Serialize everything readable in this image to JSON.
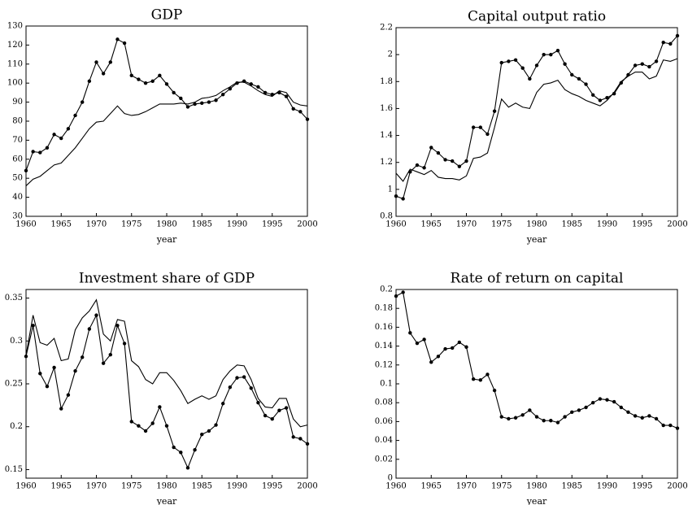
{
  "chart_data": [
    {
      "type": "line",
      "title": "GDP",
      "xlabel": "year",
      "x": [
        1960,
        1961,
        1962,
        1963,
        1964,
        1965,
        1966,
        1967,
        1968,
        1969,
        1970,
        1971,
        1972,
        1973,
        1974,
        1975,
        1976,
        1977,
        1978,
        1979,
        1980,
        1981,
        1982,
        1983,
        1984,
        1985,
        1986,
        1987,
        1988,
        1989,
        1990,
        1991,
        1992,
        1993,
        1994,
        1995,
        1996,
        1997,
        1998,
        1999,
        2000
      ],
      "xlim": [
        1960,
        2000
      ],
      "xticks": [
        1960,
        1965,
        1970,
        1975,
        1980,
        1985,
        1990,
        1995,
        2000
      ],
      "ylim": [
        30,
        130
      ],
      "yticks": [
        30,
        40,
        50,
        60,
        70,
        80,
        90,
        100,
        110,
        120,
        130
      ],
      "series": [
        {
          "color": "#000000",
          "marker": "o",
          "values": [
            54,
            64,
            63.5,
            66,
            73,
            71,
            76,
            83,
            90,
            101,
            111,
            105,
            111,
            123,
            121,
            104,
            102,
            100,
            101,
            104,
            99.5,
            95,
            92,
            87.5,
            89,
            89.5,
            90,
            91,
            94,
            97,
            100,
            101,
            99.5,
            98,
            95,
            94,
            95,
            93,
            86.5,
            85,
            81
          ]
        },
        {
          "color": "#000000",
          "values": [
            46,
            49.5,
            51,
            54,
            57,
            58,
            62,
            66,
            71,
            76,
            79.5,
            80,
            84,
            88,
            84,
            83,
            83.5,
            85,
            87,
            89,
            89,
            89,
            89.5,
            89,
            90,
            92,
            92.5,
            93.5,
            96,
            98,
            100.5,
            100.5,
            98.5,
            96,
            94,
            93,
            96,
            95,
            90,
            88.5,
            88
          ]
        }
      ]
    },
    {
      "type": "line",
      "title": "Capital output ratio",
      "xlabel": "year",
      "x": [
        1960,
        1961,
        1962,
        1963,
        1964,
        1965,
        1966,
        1967,
        1968,
        1969,
        1970,
        1971,
        1972,
        1973,
        1974,
        1975,
        1976,
        1977,
        1978,
        1979,
        1980,
        1981,
        1982,
        1983,
        1984,
        1985,
        1986,
        1987,
        1988,
        1989,
        1990,
        1991,
        1992,
        1993,
        1994,
        1995,
        1996,
        1997,
        1998,
        1999,
        2000
      ],
      "xlim": [
        1960,
        2000
      ],
      "xticks": [
        1960,
        1965,
        1970,
        1975,
        1980,
        1985,
        1990,
        1995,
        2000
      ],
      "ylim": [
        0.8,
        2.2
      ],
      "yticks": [
        0.8,
        1,
        1.2,
        1.4,
        1.6,
        1.8,
        2,
        2.2
      ],
      "series": [
        {
          "color": "#000000",
          "marker": "o",
          "values": [
            0.95,
            0.93,
            1.13,
            1.18,
            1.16,
            1.31,
            1.27,
            1.22,
            1.21,
            1.17,
            1.21,
            1.46,
            1.46,
            1.41,
            1.58,
            1.94,
            1.95,
            1.96,
            1.9,
            1.82,
            1.92,
            2,
            2,
            2.03,
            1.93,
            1.85,
            1.82,
            1.78,
            1.7,
            1.66,
            1.68,
            1.71,
            1.79,
            1.85,
            1.92,
            1.93,
            1.91,
            1.95,
            2.09,
            2.08,
            2.14
          ]
        },
        {
          "color": "#000000",
          "values": [
            1.12,
            1.06,
            1.15,
            1.13,
            1.11,
            1.14,
            1.09,
            1.08,
            1.08,
            1.07,
            1.1,
            1.23,
            1.24,
            1.27,
            1.46,
            1.67,
            1.61,
            1.64,
            1.61,
            1.6,
            1.72,
            1.78,
            1.79,
            1.81,
            1.74,
            1.71,
            1.69,
            1.66,
            1.64,
            1.62,
            1.66,
            1.72,
            1.8,
            1.84,
            1.87,
            1.87,
            1.82,
            1.84,
            1.96,
            1.95,
            1.97
          ]
        }
      ]
    },
    {
      "type": "line",
      "title": "Investment share of GDP",
      "xlabel": "year",
      "x": [
        1960,
        1961,
        1962,
        1963,
        1964,
        1965,
        1966,
        1967,
        1968,
        1969,
        1970,
        1971,
        1972,
        1973,
        1974,
        1975,
        1976,
        1977,
        1978,
        1979,
        1980,
        1981,
        1982,
        1983,
        1984,
        1985,
        1986,
        1987,
        1988,
        1989,
        1990,
        1991,
        1992,
        1993,
        1994,
        1995,
        1996,
        1997,
        1998,
        1999,
        2000
      ],
      "xlim": [
        1960,
        2000
      ],
      "xticks": [
        1960,
        1965,
        1970,
        1975,
        1980,
        1985,
        1990,
        1995,
        2000
      ],
      "ylim": [
        0.14,
        0.36
      ],
      "yticks": [
        0.15,
        0.2,
        0.25,
        0.3,
        0.35
      ],
      "series": [
        {
          "color": "#000000",
          "marker": "o",
          "values": [
            0.282,
            0.318,
            0.262,
            0.247,
            0.269,
            0.221,
            0.237,
            0.265,
            0.281,
            0.314,
            0.33,
            0.274,
            0.284,
            0.318,
            0.297,
            0.206,
            0.201,
            0.195,
            0.204,
            0.223,
            0.201,
            0.176,
            0.17,
            0.152,
            0.173,
            0.191,
            0.195,
            0.202,
            0.227,
            0.246,
            0.257,
            0.258,
            0.245,
            0.228,
            0.213,
            0.209,
            0.219,
            0.222,
            0.188,
            0.186,
            0.18
          ]
        },
        {
          "color": "#000000",
          "values": [
            0.283,
            0.33,
            0.298,
            0.295,
            0.303,
            0.277,
            0.279,
            0.313,
            0.327,
            0.335,
            0.348,
            0.308,
            0.3,
            0.325,
            0.323,
            0.277,
            0.27,
            0.255,
            0.25,
            0.263,
            0.263,
            0.254,
            0.242,
            0.227,
            0.232,
            0.236,
            0.232,
            0.236,
            0.255,
            0.265,
            0.272,
            0.271,
            0.255,
            0.233,
            0.223,
            0.222,
            0.233,
            0.233,
            0.209,
            0.2,
            0.202
          ]
        }
      ]
    },
    {
      "type": "line",
      "title": "Rate of return on capital",
      "xlabel": "year",
      "x": [
        1960,
        1961,
        1962,
        1963,
        1964,
        1965,
        1966,
        1967,
        1968,
        1969,
        1970,
        1971,
        1972,
        1973,
        1974,
        1975,
        1976,
        1977,
        1978,
        1979,
        1980,
        1981,
        1982,
        1983,
        1984,
        1985,
        1986,
        1987,
        1988,
        1989,
        1990,
        1991,
        1992,
        1993,
        1994,
        1995,
        1996,
        1997,
        1998,
        1999,
        2000
      ],
      "xlim": [
        1960,
        2000
      ],
      "xticks": [
        1960,
        1965,
        1970,
        1975,
        1980,
        1985,
        1990,
        1995,
        2000
      ],
      "ylim": [
        0,
        0.2
      ],
      "yticks": [
        0,
        0.02,
        0.04,
        0.06,
        0.08,
        0.1,
        0.12,
        0.14,
        0.16,
        0.18,
        0.2
      ],
      "series": [
        {
          "color": "#000000",
          "marker": "o",
          "values": [
            0.193,
            0.197,
            0.154,
            0.143,
            0.147,
            0.123,
            0.129,
            0.137,
            0.138,
            0.144,
            0.139,
            0.105,
            0.104,
            0.11,
            0.093,
            0.065,
            0.063,
            0.064,
            0.067,
            0.072,
            0.065,
            0.061,
            0.061,
            0.059,
            0.065,
            0.07,
            0.072,
            0.075,
            0.08,
            0.084,
            0.083,
            0.081,
            0.075,
            0.07,
            0.066,
            0.064,
            0.066,
            0.063,
            0.056,
            0.056,
            0.053
          ]
        }
      ]
    }
  ]
}
